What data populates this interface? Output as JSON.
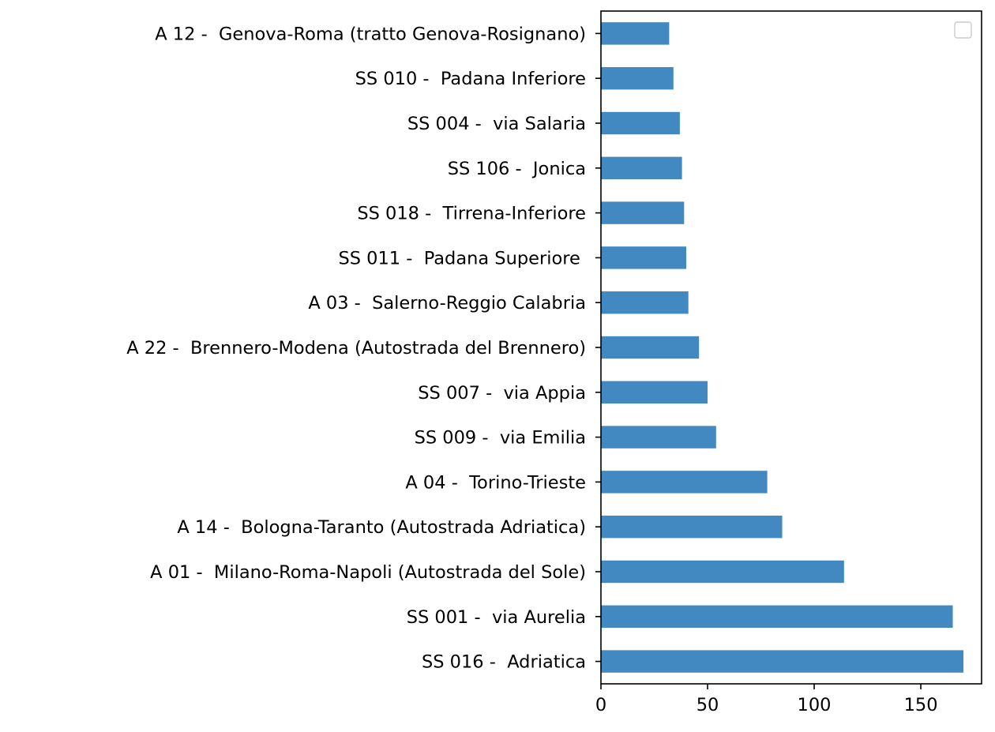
{
  "chart_data": {
    "type": "bar",
    "orientation": "horizontal",
    "categories": [
      "SS 016 -  Adriatica",
      "SS 001 -  via Aurelia",
      "A 01 -  Milano-Roma-Napoli (Autostrada del Sole)",
      "A 14 -  Bologna-Taranto (Autostrada Adriatica)",
      "A 04 -  Torino-Trieste",
      "SS 009 -  via Emilia",
      "SS 007 -  via Appia",
      "A 22 -  Brennero-Modena (Autostrada del Brennero)",
      "A 03 -  Salerno-Reggio Calabria",
      "SS 011 -  Padana Superiore ",
      "SS 018 -  Tirrena-Inferiore",
      "SS 106 -  Jonica",
      "SS 004 -  via Salaria",
      "SS 010 -  Padana Inferiore",
      "A 12 -  Genova-Roma (tratto Genova-Rosignano)"
    ],
    "values": [
      170,
      165,
      114,
      85,
      78,
      54,
      50,
      46,
      41,
      40,
      39,
      38,
      37,
      34,
      32
    ],
    "xlim": [
      0,
      178.5
    ],
    "xticks": [
      0,
      50,
      100,
      150
    ],
    "title": "",
    "xlabel": "",
    "ylabel": "",
    "bar_color": "#4189c0",
    "grid": false,
    "legend": {
      "visible": true,
      "placement": "top-right",
      "entries": []
    }
  }
}
